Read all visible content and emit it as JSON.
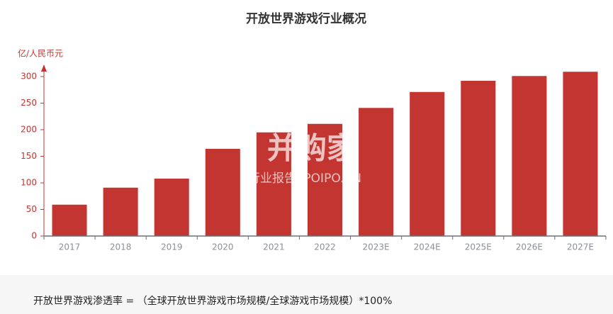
{
  "chart_data": {
    "type": "bar",
    "title": "开放世界游戏行业概况",
    "y_label": "亿/人民币元",
    "categories": [
      "2017",
      "2018",
      "2019",
      "2020",
      "2021",
      "2022",
      "2023E",
      "2024E",
      "2025E",
      "2026E",
      "2027E"
    ],
    "values": [
      59,
      91,
      108,
      164,
      195,
      211,
      241,
      271,
      292,
      301,
      309
    ],
    "color": "#c23531",
    "ylim": [
      0,
      320
    ],
    "yticks": [
      0,
      50,
      100,
      150,
      200,
      250,
      300
    ],
    "grid": false,
    "watermark": [
      "并购家",
      "行业报告 IPOIPO.CN"
    ]
  },
  "footnote": "开放世界游戏渗透率 = （全球开放世界游戏市场规模/全球游戏市场规模）*100%"
}
